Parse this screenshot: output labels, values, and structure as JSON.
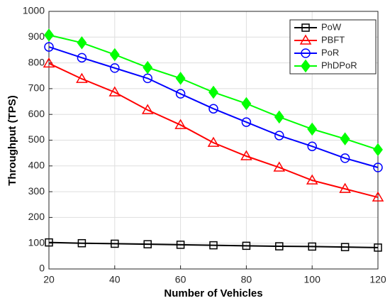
{
  "chart_data": {
    "type": "line",
    "xlabel": "Number of Vehicles",
    "ylabel": "Throughput (TPS)",
    "x": [
      20,
      30,
      40,
      50,
      60,
      70,
      80,
      90,
      100,
      110,
      120
    ],
    "xlim": [
      20,
      120
    ],
    "xticks": [
      20,
      40,
      60,
      80,
      100,
      120
    ],
    "ylim": [
      0,
      1000
    ],
    "yticks": [
      0,
      100,
      200,
      300,
      400,
      500,
      600,
      700,
      800,
      900,
      1000
    ],
    "grid": true,
    "legend": "upper right",
    "series": [
      {
        "name": "PoW",
        "color": "#000000",
        "marker": "square",
        "values": [
          103,
          100,
          98,
          96,
          94,
          92,
          90,
          88,
          87,
          85,
          83
        ]
      },
      {
        "name": "PBFT",
        "color": "#ff0000",
        "marker": "triangle",
        "values": [
          798,
          738,
          686,
          617,
          559,
          490,
          438,
          394,
          344,
          311,
          278
        ]
      },
      {
        "name": "PoR",
        "color": "#0000ff",
        "marker": "circle",
        "values": [
          862,
          820,
          780,
          740,
          680,
          622,
          570,
          518,
          476,
          430,
          394
        ]
      },
      {
        "name": "PhDPoR",
        "color": "#00ff00",
        "marker": "diamond",
        "values": [
          908,
          878,
          832,
          782,
          740,
          686,
          642,
          590,
          543,
          505,
          463
        ]
      }
    ]
  }
}
